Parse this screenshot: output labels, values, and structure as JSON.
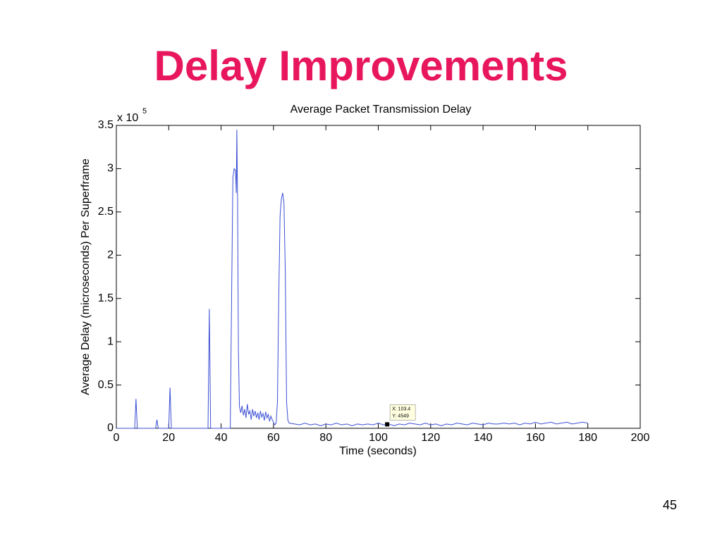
{
  "slide_title": "Delay Improvements",
  "page_number": "45",
  "chart_data": {
    "type": "line",
    "title": "Average Packet Transmission Delay",
    "x_label": "Time (seconds)",
    "y_label": "Average Delay (microseconds) Per Superframe",
    "y_multiplier": {
      "text": "x 10",
      "exponent": "5"
    },
    "color": "#3b4fd4",
    "xlim": [
      0,
      200
    ],
    "xticks": [
      0,
      20,
      40,
      60,
      80,
      100,
      120,
      140,
      160,
      180,
      200
    ],
    "ylim": [
      0,
      3.5
    ],
    "yticks": [
      0,
      0.5,
      1,
      1.5,
      2,
      2.5,
      3,
      3.5
    ],
    "x": [
      0,
      7,
      7.5,
      8,
      15,
      15.5,
      16,
      20,
      20.5,
      21,
      35,
      35.5,
      36,
      43.5,
      44,
      44.5,
      45,
      45.5,
      45.8,
      46,
      46.3,
      46.6,
      47,
      47.5,
      48,
      48.5,
      49,
      49.5,
      50,
      50.5,
      51,
      51.5,
      52,
      52.5,
      53,
      53.5,
      54,
      54.5,
      55,
      55.5,
      56,
      56.5,
      57,
      57.5,
      58,
      58.5,
      59,
      59.5,
      60,
      60.5,
      61,
      61.5,
      62,
      62.5,
      63,
      63.5,
      64,
      64.5,
      65,
      65.5,
      66,
      68,
      70,
      72,
      74,
      76,
      78,
      80,
      82,
      84,
      86,
      88,
      90,
      92,
      94,
      96,
      98,
      100,
      102,
      104,
      106,
      108,
      110,
      112,
      114,
      116,
      118,
      120,
      122,
      124,
      126,
      128,
      130,
      132,
      134,
      136,
      138,
      140,
      142,
      144,
      146,
      148,
      150,
      152,
      154,
      156,
      158,
      160,
      162,
      164,
      166,
      168,
      170,
      172,
      174,
      176,
      178,
      180
    ],
    "values": [
      0,
      0,
      0.34,
      0,
      0,
      0.1,
      0,
      0,
      0.47,
      0,
      0,
      1.38,
      0,
      0,
      1.5,
      2.9,
      3.0,
      2.98,
      2.72,
      3.45,
      2.6,
      0.9,
      0.25,
      0.18,
      0.26,
      0.15,
      0.22,
      0.12,
      0.28,
      0.16,
      0.2,
      0.1,
      0.22,
      0.14,
      0.2,
      0.12,
      0.18,
      0.1,
      0.2,
      0.13,
      0.17,
      0.09,
      0.19,
      0.12,
      0.16,
      0.08,
      0.14,
      0.1,
      0.07,
      0.04,
      0.06,
      0.3,
      1.5,
      2.45,
      2.65,
      2.72,
      2.6,
      1.8,
      0.3,
      0.09,
      0.06,
      0.05,
      0.04,
      0.06,
      0.04,
      0.05,
      0.03,
      0.05,
      0.04,
      0.06,
      0.04,
      0.05,
      0.03,
      0.05,
      0.04,
      0.05,
      0.04,
      0.06,
      0.04,
      0.05,
      0.03,
      0.05,
      0.04,
      0.06,
      0.05,
      0.04,
      0.06,
      0.04,
      0.05,
      0.03,
      0.05,
      0.04,
      0.06,
      0.05,
      0.04,
      0.06,
      0.05,
      0.04,
      0.06,
      0.05,
      0.05,
      0.06,
      0.05,
      0.06,
      0.04,
      0.06,
      0.05,
      0.07,
      0.05,
      0.06,
      0.07,
      0.05,
      0.06,
      0.07,
      0.05,
      0.06,
      0.07,
      0.06
    ],
    "datatip": {
      "x": 103.4,
      "y": 0.04549,
      "labels": [
        "X: 103.4",
        "Y: 4549"
      ]
    }
  }
}
